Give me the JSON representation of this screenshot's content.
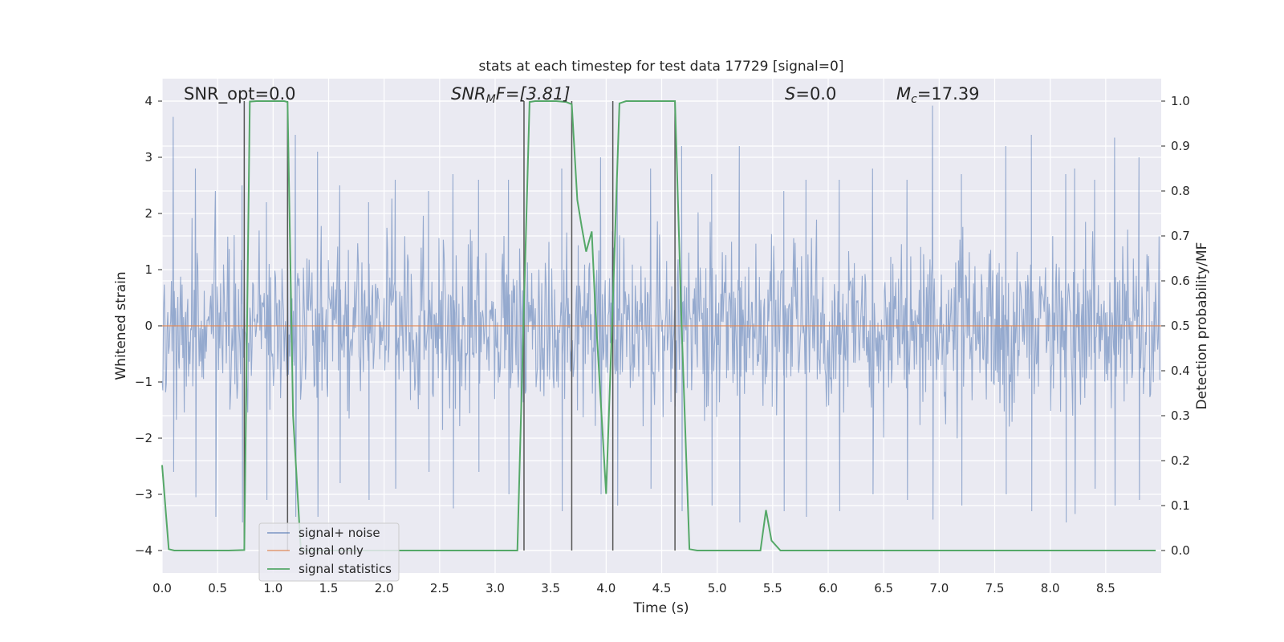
{
  "chart_data": {
    "type": "line",
    "title": "stats at each timestep for test data 17729 [signal=0]",
    "xlabel": "Time (s)",
    "ylabel_left": "Whitened strain",
    "ylabel_right": "Detection probability/MF",
    "xlim": [
      0,
      9.0
    ],
    "ylim_left": [
      -4.4,
      4.4
    ],
    "ylim_right": [
      -0.05,
      1.05
    ],
    "xticks": [
      "0.0",
      "0.5",
      "1.0",
      "1.5",
      "2.0",
      "2.5",
      "3.0",
      "3.5",
      "4.0",
      "4.5",
      "5.0",
      "5.5",
      "6.0",
      "6.5",
      "7.0",
      "7.5",
      "8.0",
      "8.5"
    ],
    "xtick_values": [
      0,
      0.5,
      1,
      1.5,
      2,
      2.5,
      3,
      3.5,
      4,
      4.5,
      5,
      5.5,
      6,
      6.5,
      7,
      7.5,
      8,
      8.5
    ],
    "yticks_left": [
      "−4",
      "−3",
      "−2",
      "−1",
      "0",
      "1",
      "2",
      "3",
      "4"
    ],
    "ytick_values_left": [
      -4,
      -3,
      -2,
      -1,
      0,
      1,
      2,
      3,
      4
    ],
    "yticks_right": [
      "0.0",
      "0.1",
      "0.2",
      "0.3",
      "0.4",
      "0.5",
      "0.6",
      "0.7",
      "0.8",
      "0.9",
      "1.0"
    ],
    "ytick_values_right": [
      0,
      0.1,
      0.2,
      0.3,
      0.4,
      0.5,
      0.6,
      0.7,
      0.8,
      0.9,
      1.0
    ],
    "grid": true,
    "legend_position": "lower-left",
    "annotations": {
      "snr_opt": "SNR_opt=0.0",
      "snr_mf_main": "SNR",
      "snr_mf_sub": "M",
      "snr_mf_rest": "F=[3.81]",
      "s_main": "S",
      "s_rest": "=0.0",
      "mc_main": "M",
      "mc_sub": "c",
      "mc_rest": "=17.39"
    },
    "series": [
      {
        "name": "signal+ noise",
        "color": "#4c72b0",
        "axis": "left",
        "description_values": "whitened noise spanning approximately -3.5 to 3.8"
      },
      {
        "name": "signal only",
        "color": "#dd8452",
        "axis": "left",
        "values_constant": 0.0
      },
      {
        "name": "signal statistics",
        "color": "#55a868",
        "axis": "right",
        "x": [
          0.0,
          0.06,
          0.11,
          0.2,
          0.4,
          0.6,
          0.74,
          0.79,
          0.85,
          0.9,
          1.0,
          1.1,
          1.13,
          1.18,
          1.25,
          1.3,
          1.5,
          2.0,
          2.5,
          3.0,
          3.2,
          3.26,
          3.31,
          3.36,
          3.45,
          3.55,
          3.64,
          3.69,
          3.74,
          3.78,
          3.82,
          3.87,
          3.9,
          4.0,
          4.06,
          4.12,
          4.18,
          4.3,
          4.5,
          4.62,
          4.68,
          4.75,
          4.82,
          5.0,
          5.2,
          5.39,
          5.44,
          5.49,
          5.57,
          6.0,
          6.5,
          7.0,
          7.5,
          8.0,
          8.5,
          8.95
        ],
        "y": [
          0.19,
          0.003,
          0.0,
          0.0,
          0.0,
          0.0,
          0.001,
          0.999,
          1.0,
          1.0,
          1.0,
          1.0,
          0.998,
          0.3,
          0.0,
          0.0,
          0.0,
          0.0,
          0.0,
          0.0,
          0.0,
          0.55,
          0.998,
          1.0,
          1.0,
          1.0,
          0.998,
          0.993,
          0.78,
          0.72,
          0.665,
          0.71,
          0.55,
          0.126,
          0.55,
          0.995,
          1.0,
          1.0,
          1.0,
          1.0,
          0.5,
          0.003,
          0.0,
          0.0,
          0.0,
          0.0,
          0.09,
          0.022,
          0.0,
          0.0,
          0.0,
          0.0,
          0.0,
          0.0,
          0.0,
          0.0
        ]
      }
    ],
    "vertical_markers": [
      0.74,
      1.13,
      3.26,
      3.69,
      4.06,
      4.62
    ],
    "vertical_marker_color": "#555555",
    "noise_spikes": [
      [
        0.1,
        3.72,
        -2.6
      ],
      [
        0.3,
        2.8,
        -3.05
      ],
      [
        0.48,
        2.4,
        -3.4
      ],
      [
        0.72,
        2.5,
        -3.5
      ],
      [
        0.94,
        2.2,
        -3.1
      ],
      [
        1.2,
        3.4,
        -3.4
      ],
      [
        1.4,
        3.1,
        -3.4
      ],
      [
        1.6,
        2.5,
        -2.8
      ],
      [
        1.86,
        2.2,
        -3.1
      ],
      [
        2.1,
        2.6,
        -2.9
      ],
      [
        2.4,
        2.4,
        -2.6
      ],
      [
        2.62,
        2.7,
        -3.25
      ],
      [
        2.85,
        2.6,
        -2.6
      ],
      [
        3.12,
        2.6,
        -3.0
      ],
      [
        3.6,
        2.8,
        -3.3
      ],
      [
        3.95,
        3.0,
        -3.0
      ],
      [
        4.1,
        2.6,
        -3.2
      ],
      [
        4.4,
        2.8,
        -2.9
      ],
      [
        4.68,
        3.2,
        -3.3
      ],
      [
        4.95,
        2.7,
        -3.2
      ],
      [
        5.2,
        3.2,
        -3.5
      ],
      [
        5.6,
        2.4,
        -3.3
      ],
      [
        5.8,
        2.6,
        -3.4
      ],
      [
        6.1,
        2.6,
        -3.3
      ],
      [
        6.4,
        2.8,
        -3.0
      ],
      [
        6.71,
        2.6,
        -3.1
      ],
      [
        6.94,
        3.92,
        -3.45
      ],
      [
        7.2,
        2.7,
        -3.2
      ],
      [
        7.6,
        3.2,
        -3.0
      ],
      [
        7.83,
        3.4,
        -3.3
      ],
      [
        8.14,
        2.7,
        -3.5
      ],
      [
        8.22,
        2.8,
        -3.35
      ],
      [
        8.4,
        2.6,
        -2.9
      ],
      [
        8.58,
        3.35,
        -3.2
      ],
      [
        8.8,
        3.0,
        -3.1
      ]
    ]
  },
  "legend": {
    "items": [
      {
        "label": "signal+ noise",
        "color": "#4c72b0"
      },
      {
        "label": "signal only",
        "color": "#dd8452"
      },
      {
        "label": "signal statistics",
        "color": "#55a868"
      }
    ]
  }
}
